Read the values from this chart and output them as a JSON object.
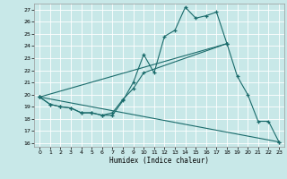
{
  "bg_color": "#c8e8e8",
  "grid_color": "#ffffff",
  "line_color": "#1a6b6b",
  "xlabel": "Humidex (Indice chaleur)",
  "xlim": [
    -0.5,
    23.5
  ],
  "ylim": [
    15.7,
    27.5
  ],
  "yticks": [
    16,
    17,
    18,
    19,
    20,
    21,
    22,
    23,
    24,
    25,
    26,
    27
  ],
  "xticks": [
    0,
    1,
    2,
    3,
    4,
    5,
    6,
    7,
    8,
    9,
    10,
    11,
    12,
    13,
    14,
    15,
    16,
    17,
    18,
    19,
    20,
    21,
    22,
    23
  ],
  "line1_x": [
    0,
    1,
    2,
    3,
    4,
    5,
    6,
    7,
    8,
    9,
    10,
    11,
    12,
    13,
    14,
    15,
    16,
    17,
    18
  ],
  "line1_y": [
    19.8,
    19.2,
    19.0,
    18.9,
    18.5,
    18.5,
    18.3,
    18.3,
    19.5,
    21.0,
    23.3,
    21.8,
    24.8,
    25.3,
    27.2,
    26.3,
    26.5,
    26.8,
    24.2
  ],
  "line2_x": [
    0,
    1,
    2,
    3,
    4,
    5,
    6,
    7,
    8,
    9,
    10,
    18
  ],
  "line2_y": [
    19.8,
    19.2,
    19.0,
    18.9,
    18.5,
    18.5,
    18.3,
    18.5,
    19.6,
    20.5,
    21.8,
    24.2
  ],
  "line3_x": [
    0,
    23
  ],
  "line3_y": [
    19.8,
    16.1
  ],
  "line4_x": [
    0,
    18,
    19,
    20,
    21,
    22,
    23
  ],
  "line4_y": [
    19.8,
    24.2,
    21.5,
    20.0,
    17.8,
    17.8,
    16.1
  ]
}
